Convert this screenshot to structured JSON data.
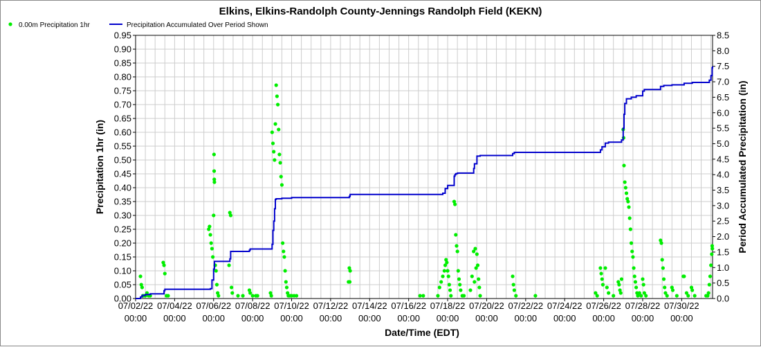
{
  "chart_data": {
    "type": "scatter+line",
    "title": "Elkins, Elkins-Randolph County-Jennings Randolph Field (KEKN)",
    "xlabel": "Date/Time (EDT)",
    "ylabel_left": "Precipitation 1hr (in)",
    "ylabel_right": "Period Accumulated Precipitation (in)",
    "xlim": [
      "07/02/22 00:00",
      "07/31/22 14:00"
    ],
    "x_ticks": [
      "07/02/22",
      "07/04/22",
      "07/06/22",
      "07/08/22",
      "07/10/22",
      "07/12/22",
      "07/14/22",
      "07/16/22",
      "07/18/22",
      "07/20/22",
      "07/22/22",
      "07/24/22",
      "07/26/22",
      "07/28/22",
      "07/30/22"
    ],
    "x_tick_time": "00:00",
    "ylim_left": [
      0,
      0.95
    ],
    "y_ticks_left": [
      "0.00",
      "0.05",
      "0.10",
      "0.15",
      "0.20",
      "0.25",
      "0.30",
      "0.35",
      "0.40",
      "0.45",
      "0.50",
      "0.55",
      "0.60",
      "0.65",
      "0.70",
      "0.75",
      "0.80",
      "0.85",
      "0.90",
      "0.95"
    ],
    "ylim_right": [
      0,
      8.5
    ],
    "y_ticks_right": [
      "0.0",
      "0.5",
      "1.0",
      "1.5",
      "2.0",
      "2.5",
      "3.0",
      "3.5",
      "4.0",
      "4.5",
      "5.0",
      "5.5",
      "6.0",
      "6.5",
      "7.0",
      "7.5",
      "8.0",
      "8.5"
    ],
    "grid": true,
    "legend_position": "top-left",
    "series": [
      {
        "name": "0.00m Precipitation 1hr",
        "type": "scatter",
        "axis": "left",
        "color": "#00ee00",
        "points": [
          [
            "07/02/22 06:00",
            0.08
          ],
          [
            "07/02/22 07:00",
            0.05
          ],
          [
            "07/02/22 08:00",
            0.04
          ],
          [
            "07/02/22 09:00",
            0.01
          ],
          [
            "07/02/22 10:00",
            0.01
          ],
          [
            "07/02/22 12:00",
            0.01
          ],
          [
            "07/02/22 14:00",
            0.02
          ],
          [
            "07/02/22 16:00",
            0.01
          ],
          [
            "07/02/22 18:00",
            0.01
          ],
          [
            "07/03/22 10:00",
            0.13
          ],
          [
            "07/03/22 11:00",
            0.12
          ],
          [
            "07/03/22 12:00",
            0.09
          ],
          [
            "07/03/22 14:00",
            0.01
          ],
          [
            "07/03/22 16:00",
            0.01
          ],
          [
            "07/05/22 18:00",
            0.25
          ],
          [
            "07/05/22 19:00",
            0.26
          ],
          [
            "07/05/22 20:00",
            0.23
          ],
          [
            "07/05/22 21:00",
            0.2
          ],
          [
            "07/05/22 22:00",
            0.18
          ],
          [
            "07/05/22 23:00",
            0.15
          ],
          [
            "07/06/22 00:00",
            0.3
          ],
          [
            "07/06/22 00:30",
            0.52
          ],
          [
            "07/06/22 00:40",
            0.46
          ],
          [
            "07/06/22 00:50",
            0.43
          ],
          [
            "07/06/22 01:00",
            0.42
          ],
          [
            "07/06/22 02:00",
            0.12
          ],
          [
            "07/06/22 03:00",
            0.1
          ],
          [
            "07/06/22 04:00",
            0.05
          ],
          [
            "07/06/22 05:00",
            0.02
          ],
          [
            "07/06/22 06:00",
            0.01
          ],
          [
            "07/06/22 20:00",
            0.31
          ],
          [
            "07/06/22 21:00",
            0.3
          ],
          [
            "07/06/22 19:00",
            0.12
          ],
          [
            "07/06/22 22:00",
            0.04
          ],
          [
            "07/06/22 23:00",
            0.02
          ],
          [
            "07/07/22 06:00",
            0.01
          ],
          [
            "07/07/22 12:00",
            0.01
          ],
          [
            "07/07/22 20:00",
            0.03
          ],
          [
            "07/07/22 21:00",
            0.02
          ],
          [
            "07/08/22 00:00",
            0.01
          ],
          [
            "07/08/22 04:00",
            0.01
          ],
          [
            "07/08/22 06:00",
            0.01
          ],
          [
            "07/08/22 22:00",
            0.02
          ],
          [
            "07/08/22 23:00",
            0.01
          ],
          [
            "07/09/22 00:00",
            0.6
          ],
          [
            "07/09/22 01:00",
            0.56
          ],
          [
            "07/09/22 02:00",
            0.53
          ],
          [
            "07/09/22 03:00",
            0.5
          ],
          [
            "07/09/22 04:00",
            0.63
          ],
          [
            "07/09/22 05:00",
            0.77
          ],
          [
            "07/09/22 06:00",
            0.73
          ],
          [
            "07/09/22 07:00",
            0.7
          ],
          [
            "07/09/22 08:00",
            0.61
          ],
          [
            "07/09/22 09:00",
            0.52
          ],
          [
            "07/09/22 10:00",
            0.49
          ],
          [
            "07/09/22 11:00",
            0.44
          ],
          [
            "07/09/22 12:00",
            0.41
          ],
          [
            "07/09/22 13:00",
            0.2
          ],
          [
            "07/09/22 14:00",
            0.17
          ],
          [
            "07/09/22 15:00",
            0.15
          ],
          [
            "07/09/22 16:00",
            0.1
          ],
          [
            "07/09/22 17:00",
            0.06
          ],
          [
            "07/09/22 18:00",
            0.04
          ],
          [
            "07/09/22 19:00",
            0.02
          ],
          [
            "07/09/22 20:00",
            0.01
          ],
          [
            "07/10/22 00:00",
            0.01
          ],
          [
            "07/10/22 03:00",
            0.01
          ],
          [
            "07/10/22 06:00",
            0.01
          ],
          [
            "07/09/22 22:00",
            0.01
          ],
          [
            "07/12/22 23:00",
            0.11
          ],
          [
            "07/13/22 00:00",
            0.1
          ],
          [
            "07/12/22 22:00",
            0.06
          ],
          [
            "07/12/22 23:30",
            0.06
          ],
          [
            "07/16/22 14:00",
            0.01
          ],
          [
            "07/16/22 18:00",
            0.01
          ],
          [
            "07/17/22 12:00",
            0.01
          ],
          [
            "07/17/22 14:00",
            0.04
          ],
          [
            "07/17/22 16:00",
            0.06
          ],
          [
            "07/17/22 18:00",
            0.08
          ],
          [
            "07/17/22 20:00",
            0.1
          ],
          [
            "07/17/22 21:00",
            0.12
          ],
          [
            "07/17/22 22:00",
            0.14
          ],
          [
            "07/17/22 23:00",
            0.13
          ],
          [
            "07/18/22 00:00",
            0.1
          ],
          [
            "07/18/22 01:00",
            0.08
          ],
          [
            "07/18/22 02:00",
            0.05
          ],
          [
            "07/18/22 03:00",
            0.03
          ],
          [
            "07/18/22 04:00",
            0.01
          ],
          [
            "07/18/22 08:00",
            0.35
          ],
          [
            "07/18/22 09:00",
            0.34
          ],
          [
            "07/18/22 10:00",
            0.23
          ],
          [
            "07/18/22 11:00",
            0.19
          ],
          [
            "07/18/22 12:00",
            0.17
          ],
          [
            "07/18/22 13:00",
            0.1
          ],
          [
            "07/18/22 14:00",
            0.07
          ],
          [
            "07/18/22 15:00",
            0.05
          ],
          [
            "07/18/22 16:00",
            0.03
          ],
          [
            "07/18/22 18:00",
            0.01
          ],
          [
            "07/18/22 20:00",
            0.01
          ],
          [
            "07/19/22 04:00",
            0.03
          ],
          [
            "07/19/22 06:00",
            0.08
          ],
          [
            "07/19/22 08:00",
            0.17
          ],
          [
            "07/19/22 10:00",
            0.18
          ],
          [
            "07/19/22 12:00",
            0.16
          ],
          [
            "07/19/22 13:00",
            0.12
          ],
          [
            "07/19/22 14:00",
            0.07
          ],
          [
            "07/19/22 15:00",
            0.04
          ],
          [
            "07/19/22 16:00",
            0.01
          ],
          [
            "07/19/22 11:00",
            0.11
          ],
          [
            "07/19/22 09:00",
            0.06
          ],
          [
            "07/21/22 08:00",
            0.08
          ],
          [
            "07/21/22 09:00",
            0.05
          ],
          [
            "07/21/22 10:00",
            0.03
          ],
          [
            "07/21/22 12:00",
            0.01
          ],
          [
            "07/22/22 12:00",
            0.01
          ],
          [
            "07/25/22 14:00",
            0.02
          ],
          [
            "07/25/22 16:00",
            0.01
          ],
          [
            "07/25/22 20:00",
            0.11
          ],
          [
            "07/25/22 21:00",
            0.09
          ],
          [
            "07/25/22 22:00",
            0.07
          ],
          [
            "07/25/22 23:00",
            0.05
          ],
          [
            "07/26/22 02:00",
            0.11
          ],
          [
            "07/26/22 04:00",
            0.04
          ],
          [
            "07/26/22 06:00",
            0.02
          ],
          [
            "07/26/22 12:00",
            0.01
          ],
          [
            "07/26/22 18:00",
            0.06
          ],
          [
            "07/26/22 19:00",
            0.05
          ],
          [
            "07/26/22 20:00",
            0.03
          ],
          [
            "07/26/22 21:00",
            0.02
          ],
          [
            "07/26/22 22:00",
            0.07
          ],
          [
            "07/27/22 00:00",
            0.61
          ],
          [
            "07/27/22 00:30",
            0.58
          ],
          [
            "07/27/22 01:00",
            0.48
          ],
          [
            "07/27/22 02:00",
            0.42
          ],
          [
            "07/27/22 03:00",
            0.4
          ],
          [
            "07/27/22 04:00",
            0.38
          ],
          [
            "07/27/22 05:00",
            0.36
          ],
          [
            "07/27/22 06:00",
            0.35
          ],
          [
            "07/27/22 07:00",
            0.33
          ],
          [
            "07/27/22 08:00",
            0.29
          ],
          [
            "07/27/22 09:00",
            0.25
          ],
          [
            "07/27/22 10:00",
            0.2
          ],
          [
            "07/27/22 11:00",
            0.17
          ],
          [
            "07/27/22 12:00",
            0.15
          ],
          [
            "07/27/22 13:00",
            0.11
          ],
          [
            "07/27/22 14:00",
            0.08
          ],
          [
            "07/27/22 15:00",
            0.06
          ],
          [
            "07/27/22 16:00",
            0.04
          ],
          [
            "07/27/22 17:00",
            0.02
          ],
          [
            "07/27/22 18:00",
            0.01
          ],
          [
            "07/27/22 20:00",
            0.02
          ],
          [
            "07/27/22 22:00",
            0.01
          ],
          [
            "07/28/22 00:00",
            0.07
          ],
          [
            "07/28/22 01:00",
            0.05
          ],
          [
            "07/28/22 02:00",
            0.02
          ],
          [
            "07/28/22 04:00",
            0.01
          ],
          [
            "07/28/22 22:00",
            0.21
          ],
          [
            "07/28/22 23:00",
            0.2
          ],
          [
            "07/29/22 00:00",
            0.14
          ],
          [
            "07/29/22 01:00",
            0.11
          ],
          [
            "07/29/22 02:00",
            0.07
          ],
          [
            "07/29/22 03:00",
            0.04
          ],
          [
            "07/29/22 04:00",
            0.02
          ],
          [
            "07/29/22 06:00",
            0.01
          ],
          [
            "07/29/22 12:00",
            0.04
          ],
          [
            "07/29/22 13:00",
            0.03
          ],
          [
            "07/29/22 18:00",
            0.01
          ],
          [
            "07/30/22 02:00",
            0.08
          ],
          [
            "07/30/22 03:00",
            0.08
          ],
          [
            "07/30/22 06:00",
            0.02
          ],
          [
            "07/30/22 08:00",
            0.01
          ],
          [
            "07/30/22 12:00",
            0.04
          ],
          [
            "07/30/22 13:00",
            0.03
          ],
          [
            "07/30/22 16:00",
            0.01
          ],
          [
            "07/31/22 06:00",
            0.01
          ],
          [
            "07/31/22 08:00",
            0.01
          ],
          [
            "07/31/22 09:00",
            0.02
          ],
          [
            "07/31/22 10:00",
            0.05
          ],
          [
            "07/31/22 11:00",
            0.08
          ],
          [
            "07/31/22 12:00",
            0.12
          ],
          [
            "07/31/22 13:00",
            0.16
          ],
          [
            "07/31/22 13:30",
            0.19
          ],
          [
            "07/31/22 13:45",
            0.18
          ]
        ]
      },
      {
        "name": "Precipitation Accumulated Over Period Shown",
        "type": "line",
        "step": true,
        "axis": "right",
        "color": "#0000cc",
        "points": [
          [
            "07/02/22 00:00",
            0.0
          ],
          [
            "07/02/22 06:00",
            0.05
          ],
          [
            "07/02/22 08:00",
            0.1
          ],
          [
            "07/02/22 12:00",
            0.13
          ],
          [
            "07/02/22 18:00",
            0.15
          ],
          [
            "07/03/22 11:00",
            0.25
          ],
          [
            "07/03/22 12:00",
            0.3
          ],
          [
            "07/05/22 20:00",
            0.32
          ],
          [
            "07/05/22 22:00",
            0.6
          ],
          [
            "07/06/22 00:00",
            0.95
          ],
          [
            "07/06/22 01:00",
            1.2
          ],
          [
            "07/06/22 20:00",
            1.28
          ],
          [
            "07/06/22 21:00",
            1.52
          ],
          [
            "07/07/22 20:00",
            1.56
          ],
          [
            "07/07/22 21:00",
            1.6
          ],
          [
            "07/09/22 00:00",
            1.75
          ],
          [
            "07/09/22 01:00",
            2.2
          ],
          [
            "07/09/22 02:00",
            2.5
          ],
          [
            "07/09/22 03:00",
            2.9
          ],
          [
            "07/09/22 04:00",
            3.2
          ],
          [
            "07/09/22 05:00",
            3.22
          ],
          [
            "07/09/22 12:00",
            3.24
          ],
          [
            "07/10/22 00:00",
            3.26
          ],
          [
            "07/12/22 23:00",
            3.3
          ],
          [
            "07/13/22 00:00",
            3.36
          ],
          [
            "07/17/22 18:00",
            3.4
          ],
          [
            "07/17/22 21:00",
            3.55
          ],
          [
            "07/18/22 00:00",
            3.65
          ],
          [
            "07/18/22 08:00",
            3.95
          ],
          [
            "07/18/22 09:00",
            4.0
          ],
          [
            "07/18/22 10:00",
            4.03
          ],
          [
            "07/18/22 12:00",
            4.05
          ],
          [
            "07/19/22 08:00",
            4.2
          ],
          [
            "07/19/22 09:00",
            4.35
          ],
          [
            "07/19/22 12:00",
            4.6
          ],
          [
            "07/19/22 16:00",
            4.62
          ],
          [
            "07/21/22 08:00",
            4.68
          ],
          [
            "07/21/22 10:00",
            4.72
          ],
          [
            "07/25/22 20:00",
            4.8
          ],
          [
            "07/25/22 22:00",
            4.9
          ],
          [
            "07/26/22 02:00",
            5.02
          ],
          [
            "07/26/22 06:00",
            5.05
          ],
          [
            "07/26/22 22:00",
            5.12
          ],
          [
            "07/27/22 00:00",
            5.5
          ],
          [
            "07/27/22 01:00",
            5.95
          ],
          [
            "07/27/22 02:00",
            6.3
          ],
          [
            "07/27/22 04:00",
            6.45
          ],
          [
            "07/27/22 10:00",
            6.5
          ],
          [
            "07/27/22 16:00",
            6.55
          ],
          [
            "07/28/22 00:00",
            6.7
          ],
          [
            "07/28/22 02:00",
            6.75
          ],
          [
            "07/28/22 22:00",
            6.85
          ],
          [
            "07/29/22 02:00",
            6.88
          ],
          [
            "07/29/22 12:00",
            6.9
          ],
          [
            "07/30/22 03:00",
            6.95
          ],
          [
            "07/30/22 13:00",
            6.98
          ],
          [
            "07/31/22 10:00",
            7.05
          ],
          [
            "07/31/22 12:00",
            7.2
          ],
          [
            "07/31/22 13:30",
            7.45
          ],
          [
            "07/31/22 14:00",
            7.5
          ]
        ]
      }
    ]
  }
}
